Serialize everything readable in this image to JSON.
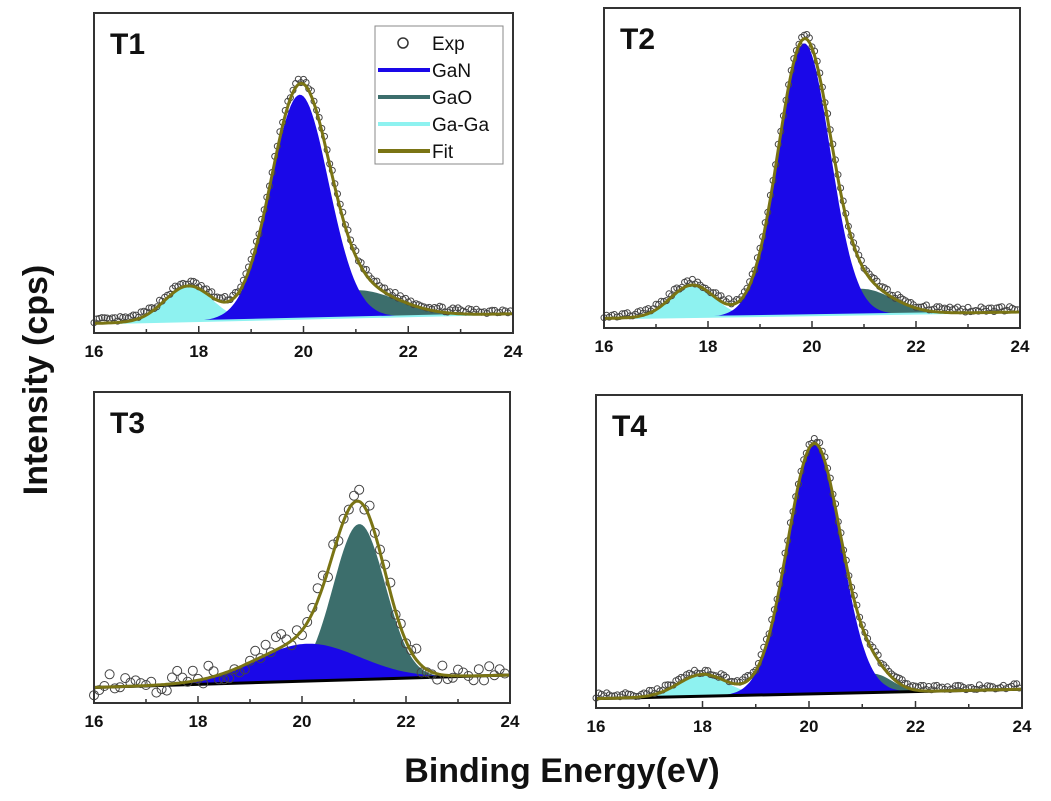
{
  "chart_data": {
    "type": "area",
    "xlabel": "Binding Energy(eV)",
    "ylabel": "Intensity (cps)",
    "xlim": [
      16,
      24
    ],
    "xticks": [
      16,
      18,
      20,
      22,
      24
    ],
    "colors": {
      "GaN": "#1a08e8",
      "GaO": "#3c6e6c",
      "Ga-Ga": "#8ef2f0",
      "Fit": "#7a7414",
      "Exp": "#444444",
      "Background": "#000000"
    },
    "legend": {
      "panel": "T1",
      "placement": "top-right",
      "entries": [
        "Exp",
        "GaN",
        "GaO",
        "Ga-Ga",
        "Fit"
      ]
    },
    "panels": [
      {
        "label": "T1",
        "background": [
          0.03,
          0.06
        ],
        "components": [
          {
            "name": "Ga-Ga",
            "center": 17.8,
            "amplitude": 0.11,
            "sigma": 0.45
          },
          {
            "name": "GaO",
            "center": 21.0,
            "amplitude": 0.085,
            "sigma": 0.8
          },
          {
            "name": "GaN",
            "center": 19.93,
            "amplitude": 0.7,
            "sigma": 0.55
          }
        ],
        "noise": 0.008
      },
      {
        "label": "T2",
        "background": [
          0.03,
          0.05
        ],
        "components": [
          {
            "name": "Ga-Ga",
            "center": 17.7,
            "amplitude": 0.1,
            "sigma": 0.42
          },
          {
            "name": "GaO",
            "center": 20.95,
            "amplitude": 0.08,
            "sigma": 0.6
          },
          {
            "name": "GaN",
            "center": 19.85,
            "amplitude": 0.85,
            "sigma": 0.5
          }
        ],
        "noise": 0.008
      },
      {
        "label": "T3",
        "background": [
          0.05,
          0.09
        ],
        "components": [
          {
            "name": "GaN",
            "center": 20.1,
            "amplitude": 0.12,
            "sigma": 1.0
          },
          {
            "name": "GaO",
            "center": 21.1,
            "amplitude": 0.5,
            "sigma": 0.5
          }
        ],
        "noise": 0.035
      },
      {
        "label": "T4",
        "background": [
          0.03,
          0.06
        ],
        "components": [
          {
            "name": "Ga-Ga",
            "center": 18.0,
            "amplitude": 0.07,
            "sigma": 0.45
          },
          {
            "name": "GaO",
            "center": 21.2,
            "amplitude": 0.06,
            "sigma": 0.35
          },
          {
            "name": "GaN",
            "center": 20.1,
            "amplitude": 0.8,
            "sigma": 0.5
          }
        ],
        "noise": 0.008
      }
    ]
  }
}
